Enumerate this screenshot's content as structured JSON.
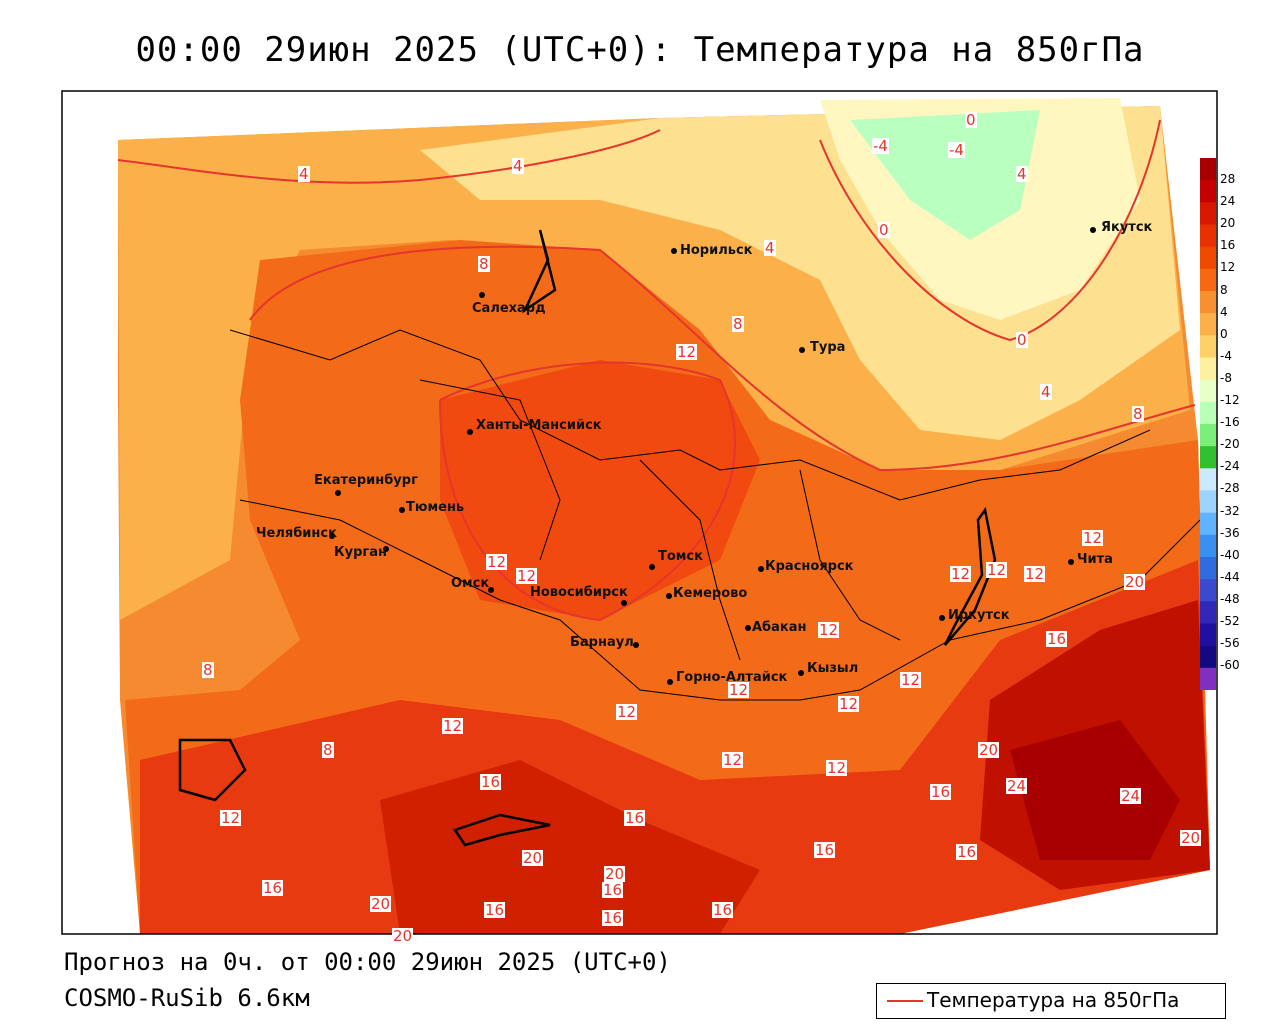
{
  "title": "00:00 29июн 2025 (UTC+0): Температура на 850гПа",
  "footer": {
    "forecast": "Прогноз на 0ч. от 00:00 29июн 2025 (UTC+0)",
    "model": "COSMO-RuSib 6.6км"
  },
  "legend": {
    "label": "Температура на 850гПа",
    "line_color": "#e5352c"
  },
  "colorbar": {
    "ticks": [
      "28",
      "24",
      "20",
      "16",
      "12",
      "8",
      "4",
      "0",
      "-4",
      "-8",
      "-12",
      "-16",
      "-20",
      "-24",
      "-28",
      "-32",
      "-36",
      "-40",
      "-44",
      "-48",
      "-52",
      "-56",
      "-60"
    ],
    "colors": [
      "#a80000",
      "#c40000",
      "#d81800",
      "#e83000",
      "#f04a00",
      "#f56a10",
      "#f89030",
      "#fbb04a",
      "#fdd068",
      "#fff0a0",
      "#e8ffc8",
      "#b8ffb8",
      "#7af07a",
      "#30c030",
      "#cceaff",
      "#9ad4ff",
      "#60b4ff",
      "#3a90f0",
      "#2f6ce0",
      "#3a4ad0",
      "#3028b8",
      "#2010a0",
      "#140a80",
      "#8030c0"
    ]
  },
  "cities": [
    {
      "name": "Норильск"
    },
    {
      "name": "Якутск"
    },
    {
      "name": "Салехард"
    },
    {
      "name": "Тура"
    },
    {
      "name": "Ханты-Мансийск"
    },
    {
      "name": "Екатеринбург"
    },
    {
      "name": "Тюмень"
    },
    {
      "name": "Челябинск"
    },
    {
      "name": "Курган"
    },
    {
      "name": "Омск"
    },
    {
      "name": "Новосибирск"
    },
    {
      "name": "Томск"
    },
    {
      "name": "Кемерово"
    },
    {
      "name": "Красноярск"
    },
    {
      "name": "Барнаул"
    },
    {
      "name": "Абакан"
    },
    {
      "name": "Горно-Алтайск"
    },
    {
      "name": "Кызыл"
    },
    {
      "name": "Иркутск"
    },
    {
      "name": "Чита"
    }
  ],
  "isotherm_labels": [
    "4",
    "4",
    "0",
    "-4",
    "-4",
    "0",
    "4",
    "4",
    "8",
    "12",
    "0",
    "4",
    "8",
    "8",
    "12",
    "12",
    "12",
    "12",
    "12",
    "12",
    "12",
    "20",
    "8",
    "8",
    "12",
    "12",
    "12",
    "12",
    "12",
    "12",
    "12",
    "16",
    "16",
    "20",
    "24",
    "24",
    "16",
    "16",
    "16",
    "20",
    "20",
    "16",
    "16",
    "20",
    "16",
    "16",
    "20",
    "12",
    "16",
    "16",
    "20"
  ]
}
